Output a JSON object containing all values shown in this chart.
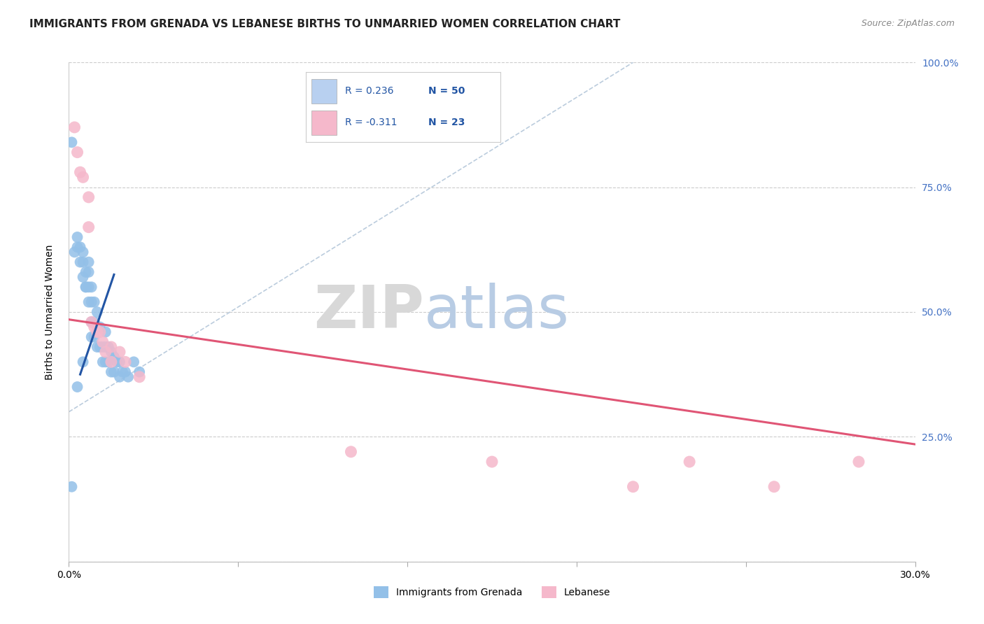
{
  "title": "IMMIGRANTS FROM GRENADA VS LEBANESE BIRTHS TO UNMARRIED WOMEN CORRELATION CHART",
  "source": "Source: ZipAtlas.com",
  "ylabel": "Births to Unmarried Women",
  "xmin": 0.0,
  "xmax": 0.3,
  "ymin": 0.0,
  "ymax": 1.0,
  "blue_R": 0.236,
  "blue_N": 50,
  "pink_R": -0.311,
  "pink_N": 23,
  "blue_scatter_x": [
    0.001,
    0.002,
    0.003,
    0.003,
    0.004,
    0.004,
    0.005,
    0.005,
    0.005,
    0.006,
    0.006,
    0.006,
    0.007,
    0.007,
    0.007,
    0.007,
    0.008,
    0.008,
    0.008,
    0.008,
    0.009,
    0.009,
    0.009,
    0.01,
    0.01,
    0.01,
    0.011,
    0.011,
    0.012,
    0.012,
    0.013,
    0.013,
    0.013,
    0.014,
    0.014,
    0.015,
    0.015,
    0.016,
    0.016,
    0.017,
    0.018,
    0.018,
    0.019,
    0.02,
    0.021,
    0.023,
    0.025,
    0.005,
    0.001,
    0.003
  ],
  "blue_scatter_y": [
    0.84,
    0.62,
    0.63,
    0.65,
    0.6,
    0.63,
    0.6,
    0.57,
    0.62,
    0.55,
    0.55,
    0.58,
    0.52,
    0.55,
    0.58,
    0.6,
    0.45,
    0.48,
    0.52,
    0.55,
    0.45,
    0.48,
    0.52,
    0.43,
    0.47,
    0.5,
    0.43,
    0.47,
    0.4,
    0.43,
    0.4,
    0.43,
    0.46,
    0.4,
    0.43,
    0.38,
    0.42,
    0.38,
    0.41,
    0.4,
    0.37,
    0.4,
    0.38,
    0.38,
    0.37,
    0.4,
    0.38,
    0.4,
    0.15,
    0.35
  ],
  "pink_scatter_x": [
    0.002,
    0.003,
    0.004,
    0.005,
    0.007,
    0.007,
    0.008,
    0.009,
    0.01,
    0.011,
    0.012,
    0.013,
    0.015,
    0.015,
    0.018,
    0.02,
    0.025,
    0.1,
    0.15,
    0.2,
    0.22,
    0.25,
    0.28
  ],
  "pink_scatter_y": [
    0.87,
    0.82,
    0.78,
    0.77,
    0.73,
    0.67,
    0.48,
    0.47,
    0.46,
    0.46,
    0.44,
    0.42,
    0.4,
    0.43,
    0.42,
    0.4,
    0.37,
    0.22,
    0.2,
    0.15,
    0.2,
    0.15,
    0.2
  ],
  "blue_line_x": [
    0.004,
    0.016
  ],
  "blue_line_y": [
    0.375,
    0.575
  ],
  "pink_line_x": [
    0.0,
    0.3
  ],
  "pink_line_y": [
    0.485,
    0.235
  ],
  "dashed_line_x": [
    0.0,
    0.2
  ],
  "dashed_line_y": [
    0.3,
    1.0
  ],
  "blue_color": "#93c0e8",
  "pink_color": "#f5b8cb",
  "blue_line_color": "#2255a4",
  "pink_line_color": "#e05575",
  "dashed_color": "#bbccdd",
  "watermark_zip": "ZIP",
  "watermark_atlas": "atlas",
  "watermark_color_zip": "#d8d8d8",
  "watermark_color_atlas": "#b8cce4",
  "title_fontsize": 11,
  "label_fontsize": 10,
  "tick_fontsize": 10,
  "source_fontsize": 9,
  "legend_box_blue_color": "#b8d0f0",
  "legend_box_pink_color": "#f5b8cb",
  "legend_R_color": "#2255a4",
  "legend_N_color": "#2255a4"
}
